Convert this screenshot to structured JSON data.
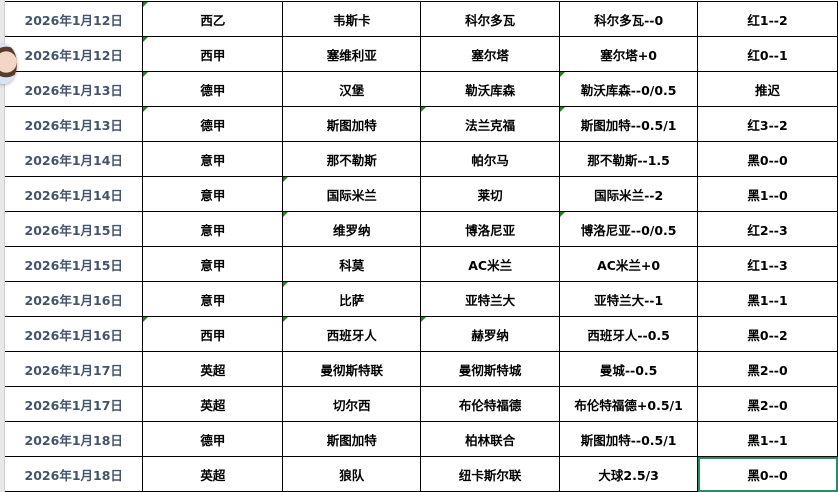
{
  "rows": [
    {
      "date": "2026年1月12日",
      "league": "西乙",
      "home": "韦斯卡",
      "away": "科尔多瓦",
      "handicap": "科尔多瓦--0",
      "result": "红1--2"
    },
    {
      "date": "2026年1月12日",
      "league": "西甲",
      "home": "塞维利亚",
      "away": "塞尔塔",
      "handicap": "塞尔塔+0",
      "result": "红0--1"
    },
    {
      "date": "2026年1月13日",
      "league": "德甲",
      "home": "汉堡",
      "away": "勒沃库森",
      "handicap": "勒沃库森--0/0.5",
      "result": "推迟"
    },
    {
      "date": "2026年1月13日",
      "league": "德甲",
      "home": "斯图加特",
      "away": "法兰克福",
      "handicap": "斯图加特--0.5/1",
      "result": "红3--2"
    },
    {
      "date": "2026年1月14日",
      "league": "意甲",
      "home": "那不勒斯",
      "away": "帕尔马",
      "handicap": "那不勒斯--1.5",
      "result": "黑0--0"
    },
    {
      "date": "2026年1月14日",
      "league": "意甲",
      "home": "国际米兰",
      "away": "莱切",
      "handicap": "国际米兰--2",
      "result": "黑1--0"
    },
    {
      "date": "2026年1月15日",
      "league": "意甲",
      "home": "维罗纳",
      "away": "博洛尼亚",
      "handicap": "博洛尼亚--0/0.5",
      "result": "红2--3"
    },
    {
      "date": "2026年1月15日",
      "league": "意甲",
      "home": "科莫",
      "away": "AC米兰",
      "handicap": "AC米兰+0",
      "result": "红1--3"
    },
    {
      "date": "2026年1月16日",
      "league": "意甲",
      "home": "比萨",
      "away": "亚特兰大",
      "handicap": "亚特兰大--1",
      "result": "黑1--1"
    },
    {
      "date": "2026年1月16日",
      "league": "西甲",
      "home": "西班牙人",
      "away": "赫罗纳",
      "handicap": "西班牙人--0.5",
      "result": "黑0--2"
    },
    {
      "date": "2026年1月17日",
      "league": "英超",
      "home": "曼彻斯特联",
      "away": "曼彻斯特城",
      "handicap": "曼城--0.5",
      "result": "黑2--0"
    },
    {
      "date": "2026年1月17日",
      "league": "英超",
      "home": "切尔西",
      "away": "布伦特福德",
      "handicap": "布伦特福德+0.5/1",
      "result": "黑2--0"
    },
    {
      "date": "2026年1月18日",
      "league": "德甲",
      "home": "斯图加特",
      "away": "柏林联合",
      "handicap": "斯图加特--0.5/1",
      "result": "黑1--1"
    },
    {
      "date": "2026年1月18日",
      "league": "英超",
      "home": "狼队",
      "away": "纽卡斯尔联",
      "handicap": "大球2.5/3",
      "result": "黑0--0"
    }
  ]
}
